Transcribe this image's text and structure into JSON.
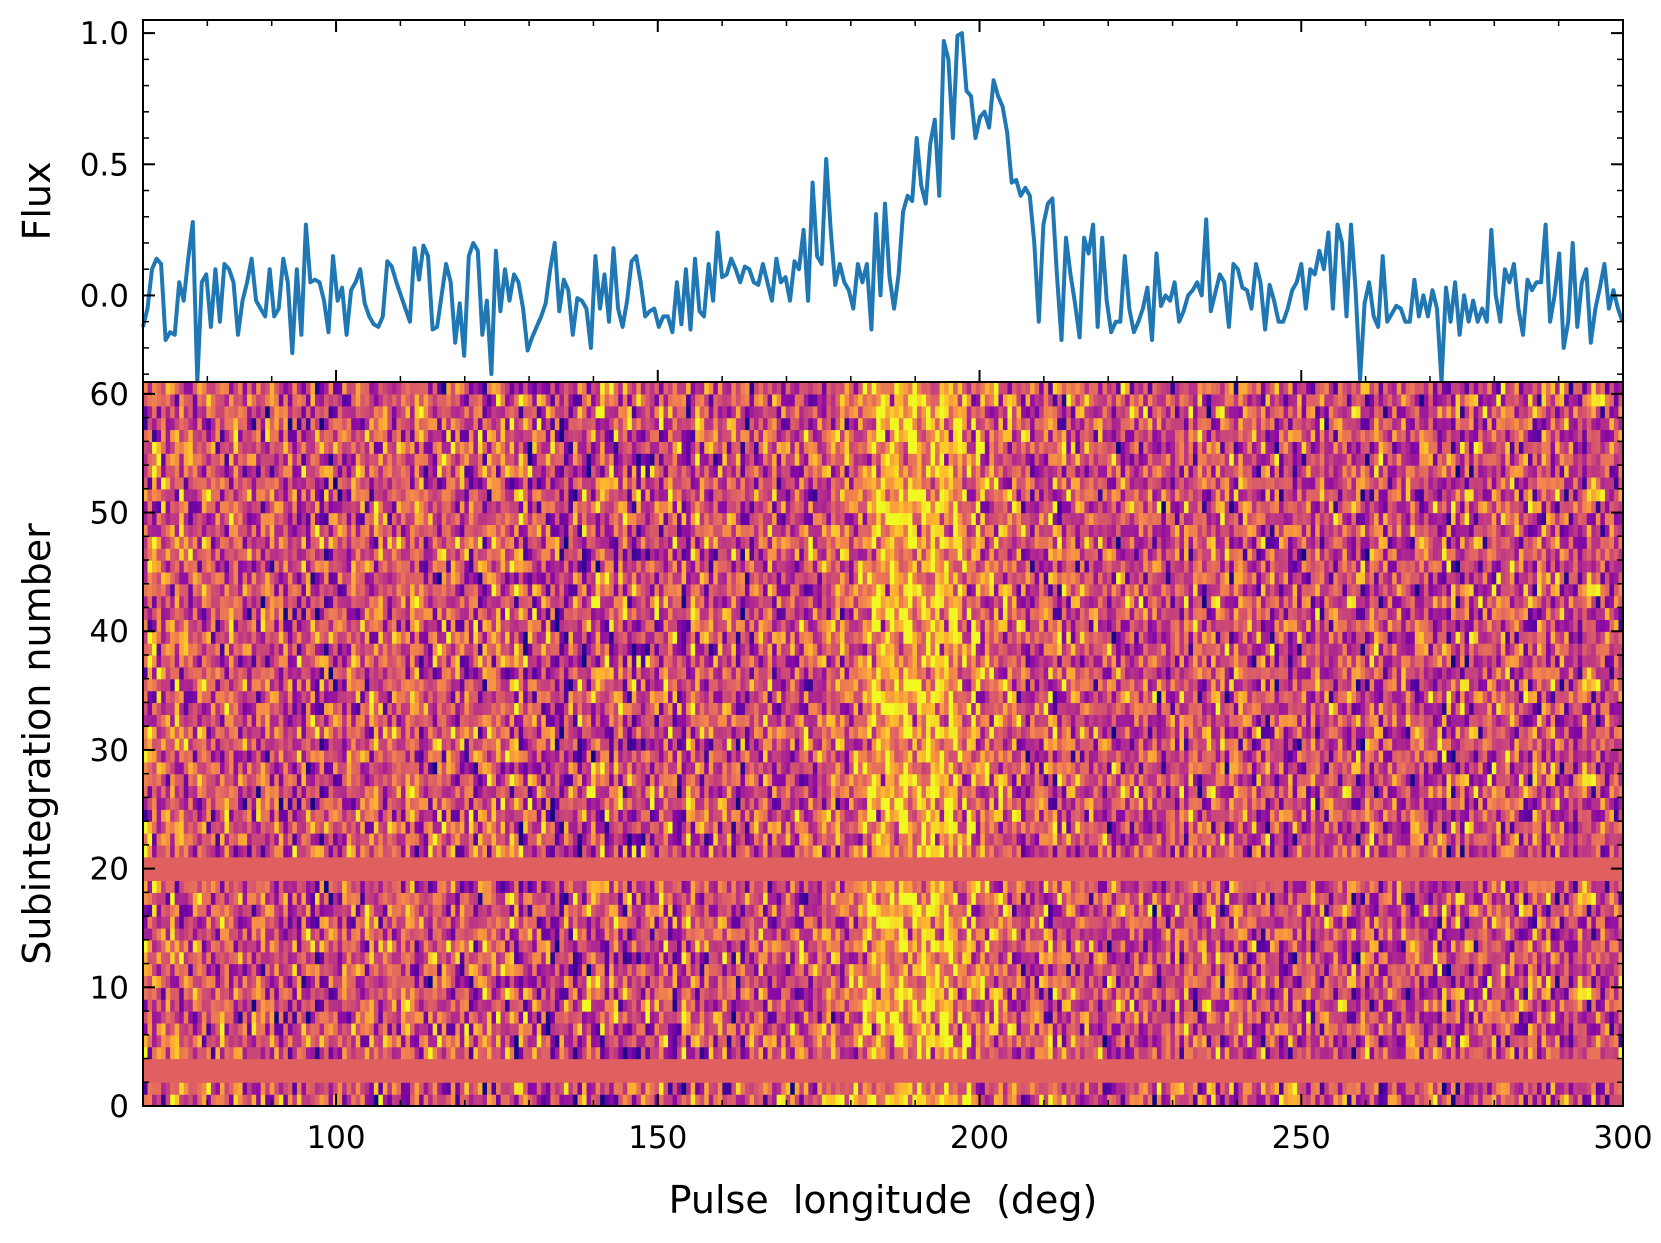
{
  "chart_data": [
    {
      "panel": "profile",
      "type": "line",
      "ylabel": "Flux",
      "xlabel": "",
      "xlim": [
        70,
        300
      ],
      "ylim": [
        -0.33,
        1.05
      ],
      "yticks": [
        0.0,
        0.5,
        1.0
      ],
      "ytick_labels": [
        "0.0",
        "0.5",
        "1.0"
      ],
      "line_color": "#1f77b4",
      "x_start": 70,
      "x_step": 0.703125,
      "series": [
        {
          "values": [
            -0.12,
            -0.05,
            0.1,
            0.14,
            0.12,
            -0.17,
            -0.14,
            -0.15,
            0.05,
            -0.02,
            0.14,
            0.28,
            -0.33,
            0.05,
            0.08,
            -0.12,
            0.1,
            -0.1,
            0.12,
            0.1,
            0.05,
            -0.15,
            -0.02,
            0.05,
            0.14,
            -0.02,
            -0.05,
            -0.08,
            0.1,
            -0.08,
            -0.05,
            0.14,
            0.05,
            -0.22,
            0.1,
            -0.15,
            0.27,
            0.05,
            0.06,
            0.05,
            -0.02,
            -0.14,
            0.15,
            -0.02,
            0.03,
            -0.15,
            0.02,
            0.05,
            0.1,
            -0.03,
            -0.08,
            -0.11,
            -0.12,
            -0.08,
            0.13,
            0.11,
            0.05,
            0.0,
            -0.05,
            -0.1,
            0.18,
            0.06,
            0.19,
            0.15,
            -0.13,
            -0.12,
            0.0,
            0.12,
            0.05,
            -0.18,
            -0.03,
            -0.23,
            0.15,
            0.2,
            0.17,
            -0.15,
            -0.02,
            -0.3,
            0.17,
            -0.06,
            0.1,
            -0.02,
            0.08,
            0.05,
            -0.05,
            -0.21,
            -0.16,
            -0.12,
            -0.08,
            -0.03,
            0.1,
            0.2,
            -0.06,
            0.06,
            0.02,
            -0.15,
            -0.01,
            -0.02,
            -0.05,
            -0.2,
            0.15,
            -0.05,
            0.08,
            -0.1,
            0.18,
            -0.05,
            -0.12,
            -0.02,
            0.13,
            0.15,
            0.05,
            -0.08,
            -0.06,
            -0.05,
            -0.12,
            -0.08,
            -0.08,
            -0.14,
            0.05,
            -0.11,
            0.1,
            -0.13,
            0.14,
            -0.06,
            -0.08,
            0.12,
            -0.02,
            0.24,
            0.07,
            0.08,
            0.14,
            0.1,
            0.05,
            0.11,
            0.1,
            0.05,
            0.04,
            0.12,
            0.05,
            -0.02,
            0.14,
            0.05,
            0.07,
            -0.02,
            0.13,
            0.1,
            0.25,
            -0.02,
            0.43,
            0.15,
            0.12,
            0.52,
            0.25,
            0.04,
            0.12,
            0.05,
            0.02,
            -0.05,
            0.12,
            0.05,
            0.12,
            -0.13,
            0.31,
            0.0,
            0.35,
            0.07,
            -0.05,
            0.08,
            0.32,
            0.38,
            0.36,
            0.6,
            0.42,
            0.35,
            0.58,
            0.67,
            0.38,
            0.97,
            0.9,
            0.6,
            0.99,
            1.0,
            0.78,
            0.76,
            0.6,
            0.68,
            0.7,
            0.64,
            0.82,
            0.76,
            0.72,
            0.62,
            0.43,
            0.44,
            0.38,
            0.41,
            0.38,
            0.2,
            -0.1,
            0.27,
            0.35,
            0.37,
            0.08,
            -0.17,
            0.22,
            0.08,
            -0.03,
            -0.16,
            0.22,
            0.16,
            0.27,
            -0.12,
            0.22,
            -0.02,
            -0.14,
            -0.1,
            -0.1,
            0.15,
            -0.05,
            -0.14,
            -0.1,
            -0.05,
            0.03,
            -0.17,
            0.16,
            -0.04,
            0.0,
            -0.02,
            0.05,
            -0.1,
            -0.06,
            0.0,
            0.02,
            0.05,
            0.0,
            0.29,
            -0.06,
            0.01,
            0.08,
            0.05,
            -0.12,
            0.12,
            0.1,
            0.03,
            0.02,
            -0.05,
            0.12,
            0.05,
            -0.13,
            0.04,
            -0.02,
            -0.1,
            -0.1,
            -0.05,
            0.02,
            0.05,
            0.12,
            -0.05,
            0.1,
            0.08,
            0.17,
            0.1,
            0.24,
            -0.05,
            0.27,
            0.2,
            -0.08,
            0.27,
            0.02,
            -0.32,
            -0.03,
            0.05,
            -0.08,
            -0.12,
            0.15,
            -0.1,
            -0.07,
            -0.04,
            -0.05,
            -0.1,
            -0.1,
            0.06,
            -0.08,
            0.0,
            -0.08,
            0.02,
            -0.05,
            -0.33,
            0.03,
            -0.1,
            0.05,
            -0.15,
            0.0,
            -0.1,
            -0.02,
            -0.1,
            -0.05,
            -0.1,
            0.25,
            0.0,
            -0.1,
            0.1,
            0.05,
            0.12,
            -0.05,
            -0.15,
            0.06,
            0.02,
            0.05,
            0.05,
            0.27,
            -0.1,
            0.0,
            0.16,
            -0.2,
            -0.1,
            0.2,
            -0.12,
            0.05,
            0.1,
            -0.18,
            -0.05,
            0.03,
            0.12,
            -0.05,
            0.02,
            -0.05,
            -0.1,
            0.02,
            -0.03,
            -0.08,
            -0.02,
            -0.01,
            0.1,
            -0.05,
            -0.06,
            0.05,
            0.12,
            0.1,
            0.08,
            -0.14,
            0.1,
            0.15,
            0.07,
            0.12,
            0.1,
            -0.1,
            0.2,
            0.05,
            -0.02,
            0.1,
            0.25,
            -0.05,
            -0.35,
            0.02,
            0.22,
            -0.1,
            0.15,
            0.12,
            0.05,
            0.02,
            0.05,
            0.05,
            0.1,
            -0.2,
            0.0,
            -0.12,
            0.05,
            -0.1,
            -0.1,
            0.1,
            0.25,
            0.06,
            -0.05,
            0.1,
            0.15,
            -0.05,
            0.05,
            -0.05,
            -0.02,
            0.1,
            -0.15,
            0.05,
            0.08,
            -0.12,
            0.1,
            -0.06,
            0.05,
            0.22,
            -0.05,
            0.22,
            -0.05,
            -0.1,
            0.08,
            0.25,
            0.22,
            0.3,
            0.1,
            -0.05,
            -0.15,
            0.05,
            -0.12,
            -0.05,
            0.05,
            0.0,
            0.15,
            0.08,
            -0.05,
            -0.12
          ],
          "note_unused": ""
        }
      ]
    },
    {
      "panel": "waterfall",
      "type": "heatmap",
      "xlabel": "Pulse  longitude  (deg)",
      "ylabel": "Subintegration number",
      "xlim": [
        70,
        300
      ],
      "ylim": [
        0,
        61
      ],
      "xticks": [
        100,
        150,
        200,
        250,
        300
      ],
      "xtick_labels": [
        "100",
        "150",
        "200",
        "250",
        "300"
      ],
      "yticks": [
        0,
        10,
        20,
        30,
        40,
        50,
        60
      ],
      "ytick_labels": [
        "0",
        "10",
        "20",
        "30",
        "40",
        "50",
        "60"
      ],
      "colormap": "plasma",
      "masked_color": "#e05f5f",
      "masked_subintegrations": [
        2,
        3,
        19,
        20
      ],
      "bright_band_center_deg": 191,
      "bright_band_width_deg": 14
    }
  ]
}
